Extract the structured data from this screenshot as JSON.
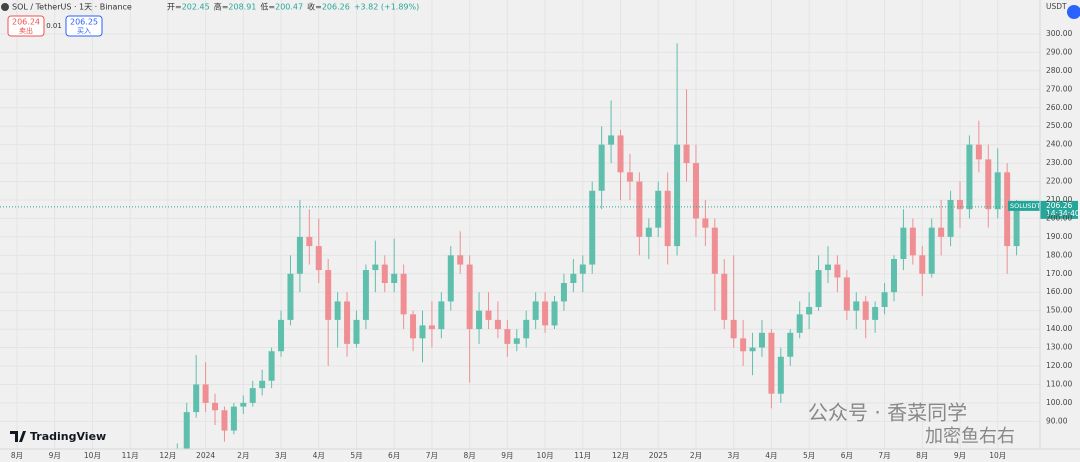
{
  "chart_data": {
    "type": "candlestick",
    "symbol": "SOL / TetherUS · 1天 · Binance",
    "ohlc_header": [
      {
        "label": "开",
        "value": "202.45"
      },
      {
        "label": "高",
        "value": "208.91"
      },
      {
        "label": "低",
        "value": "200.47"
      },
      {
        "label": "收",
        "value": "206.26"
      },
      {
        "label": "",
        "value": "+3.82 (+1.89%)"
      }
    ],
    "sell": {
      "price": "206.24",
      "label": "卖出"
    },
    "spread": "0.01",
    "buy": {
      "price": "206.25",
      "label": "买入"
    },
    "currency": "USDT",
    "last": {
      "name": "SOLUSDT",
      "value": 206.26,
      "time": "14:34:40"
    },
    "brand": "TradingView",
    "watermark": [
      "公众号 · 香菜同学",
      "加密鱼右右"
    ],
    "up_color": "#5fbfad",
    "down_color": "#ef8f93",
    "ylim": [
      75,
      313
    ],
    "yticks": [
      {
        "value": 90,
        "label": "90.00"
      },
      {
        "value": 100,
        "label": "100.00"
      },
      {
        "value": 110,
        "label": "110.00"
      },
      {
        "value": 120,
        "label": "120.00"
      },
      {
        "value": 130,
        "label": "130.00"
      },
      {
        "value": 140,
        "label": "140.00"
      },
      {
        "value": 150,
        "label": "150.00"
      },
      {
        "value": 160,
        "label": "160.00"
      },
      {
        "value": 170,
        "label": "170.00"
      },
      {
        "value": 180,
        "label": "180.00"
      },
      {
        "value": 190,
        "label": "190.00"
      },
      {
        "value": 200,
        "label": "200.00"
      },
      {
        "value": 210,
        "label": "210.00"
      },
      {
        "value": 220,
        "label": "220.00"
      },
      {
        "value": 230,
        "label": "230.00"
      },
      {
        "value": 240,
        "label": "240.00"
      },
      {
        "value": 250,
        "label": "250.00"
      },
      {
        "value": 260,
        "label": "260.00"
      },
      {
        "value": 270,
        "label": "270.00"
      },
      {
        "value": 280,
        "label": "280.00"
      },
      {
        "value": 290,
        "label": "290.00"
      },
      {
        "value": 300,
        "label": "300.00"
      }
    ],
    "xlim": [
      0,
      109.5
    ],
    "xticks": [
      {
        "value": 0,
        "label": "8月"
      },
      {
        "value": 4,
        "label": "9月"
      },
      {
        "value": 8,
        "label": "10月"
      },
      {
        "value": 12,
        "label": "11月"
      },
      {
        "value": 16,
        "label": "12月"
      },
      {
        "value": 20,
        "label": "2024"
      },
      {
        "value": 24,
        "label": "2月"
      },
      {
        "value": 28,
        "label": "3月"
      },
      {
        "value": 32,
        "label": "4月"
      },
      {
        "value": 36,
        "label": "5月"
      },
      {
        "value": 40,
        "label": "6月"
      },
      {
        "value": 44,
        "label": "7月"
      },
      {
        "value": 48,
        "label": "8月"
      },
      {
        "value": 52,
        "label": "9月"
      },
      {
        "value": 56,
        "label": "10月"
      },
      {
        "value": 60,
        "label": "11月"
      },
      {
        "value": 64,
        "label": "12月"
      },
      {
        "value": 68,
        "label": "2025"
      },
      {
        "value": 72,
        "label": "2月"
      },
      {
        "value": 76,
        "label": "3月"
      },
      {
        "value": 80,
        "label": "4月"
      },
      {
        "value": 84,
        "label": "5月"
      },
      {
        "value": 88,
        "label": "6月"
      },
      {
        "value": 92,
        "label": "7月"
      },
      {
        "value": 96,
        "label": "8月"
      },
      {
        "value": 100,
        "label": "9月"
      },
      {
        "value": 104,
        "label": "10月"
      }
    ],
    "grid": true,
    "start_index": 17,
    "candles": [
      {
        "open": 62,
        "high": 78,
        "low": 60,
        "close": 75
      },
      {
        "open": 75,
        "high": 100,
        "low": 72,
        "close": 95
      },
      {
        "open": 95,
        "high": 126,
        "low": 92,
        "close": 110
      },
      {
        "open": 110,
        "high": 122,
        "low": 95,
        "close": 100
      },
      {
        "open": 100,
        "high": 105,
        "low": 88,
        "close": 96
      },
      {
        "open": 96,
        "high": 98,
        "low": 79,
        "close": 85
      },
      {
        "open": 85,
        "high": 100,
        "low": 83,
        "close": 98
      },
      {
        "open": 98,
        "high": 104,
        "low": 94,
        "close": 100
      },
      {
        "open": 100,
        "high": 112,
        "low": 98,
        "close": 108
      },
      {
        "open": 108,
        "high": 118,
        "low": 104,
        "close": 112
      },
      {
        "open": 112,
        "high": 130,
        "low": 108,
        "close": 128
      },
      {
        "open": 128,
        "high": 150,
        "low": 125,
        "close": 145
      },
      {
        "open": 145,
        "high": 180,
        "low": 142,
        "close": 170
      },
      {
        "open": 170,
        "high": 210,
        "low": 160,
        "close": 190
      },
      {
        "open": 190,
        "high": 205,
        "low": 175,
        "close": 185
      },
      {
        "open": 185,
        "high": 200,
        "low": 165,
        "close": 172
      },
      {
        "open": 172,
        "high": 178,
        "low": 120,
        "close": 145
      },
      {
        "open": 145,
        "high": 160,
        "low": 130,
        "close": 155
      },
      {
        "open": 155,
        "high": 160,
        "low": 125,
        "close": 132
      },
      {
        "open": 132,
        "high": 150,
        "low": 130,
        "close": 145
      },
      {
        "open": 145,
        "high": 175,
        "low": 140,
        "close": 172
      },
      {
        "open": 172,
        "high": 188,
        "low": 160,
        "close": 175
      },
      {
        "open": 175,
        "high": 180,
        "low": 160,
        "close": 165
      },
      {
        "open": 165,
        "high": 189,
        "low": 160,
        "close": 170
      },
      {
        "open": 170,
        "high": 175,
        "low": 140,
        "close": 148
      },
      {
        "open": 148,
        "high": 150,
        "low": 128,
        "close": 135
      },
      {
        "open": 135,
        "high": 150,
        "low": 122,
        "close": 142
      },
      {
        "open": 142,
        "high": 155,
        "low": 130,
        "close": 140
      },
      {
        "open": 140,
        "high": 160,
        "low": 135,
        "close": 155
      },
      {
        "open": 155,
        "high": 185,
        "low": 150,
        "close": 180
      },
      {
        "open": 180,
        "high": 193,
        "low": 170,
        "close": 175
      },
      {
        "open": 175,
        "high": 180,
        "low": 111,
        "close": 140
      },
      {
        "open": 140,
        "high": 160,
        "low": 132,
        "close": 150
      },
      {
        "open": 150,
        "high": 160,
        "low": 140,
        "close": 145
      },
      {
        "open": 145,
        "high": 155,
        "low": 135,
        "close": 140
      },
      {
        "open": 140,
        "high": 145,
        "low": 125,
        "close": 132
      },
      {
        "open": 132,
        "high": 140,
        "low": 128,
        "close": 135
      },
      {
        "open": 135,
        "high": 150,
        "low": 130,
        "close": 145
      },
      {
        "open": 145,
        "high": 160,
        "low": 140,
        "close": 155
      },
      {
        "open": 155,
        "high": 160,
        "low": 138,
        "close": 142
      },
      {
        "open": 142,
        "high": 158,
        "low": 140,
        "close": 155
      },
      {
        "open": 155,
        "high": 170,
        "low": 150,
        "close": 165
      },
      {
        "open": 165,
        "high": 178,
        "low": 160,
        "close": 170
      },
      {
        "open": 170,
        "high": 180,
        "low": 160,
        "close": 175
      },
      {
        "open": 175,
        "high": 220,
        "low": 170,
        "close": 215
      },
      {
        "open": 215,
        "high": 250,
        "low": 205,
        "close": 240
      },
      {
        "open": 240,
        "high": 264,
        "low": 230,
        "close": 245
      },
      {
        "open": 245,
        "high": 248,
        "low": 210,
        "close": 225
      },
      {
        "open": 225,
        "high": 235,
        "low": 210,
        "close": 220
      },
      {
        "open": 220,
        "high": 225,
        "low": 180,
        "close": 190
      },
      {
        "open": 190,
        "high": 200,
        "low": 178,
        "close": 195
      },
      {
        "open": 195,
        "high": 220,
        "low": 190,
        "close": 215
      },
      {
        "open": 215,
        "high": 225,
        "low": 175,
        "close": 185
      },
      {
        "open": 185,
        "high": 295,
        "low": 180,
        "close": 240
      },
      {
        "open": 240,
        "high": 270,
        "low": 220,
        "close": 230
      },
      {
        "open": 230,
        "high": 240,
        "low": 190,
        "close": 200
      },
      {
        "open": 200,
        "high": 210,
        "low": 185,
        "close": 195
      },
      {
        "open": 195,
        "high": 200,
        "low": 150,
        "close": 170
      },
      {
        "open": 170,
        "high": 178,
        "low": 140,
        "close": 145
      },
      {
        "open": 145,
        "high": 180,
        "low": 130,
        "close": 135
      },
      {
        "open": 135,
        "high": 145,
        "low": 120,
        "close": 128
      },
      {
        "open": 128,
        "high": 138,
        "low": 115,
        "close": 130
      },
      {
        "open": 130,
        "high": 145,
        "low": 125,
        "close": 138
      },
      {
        "open": 138,
        "high": 140,
        "low": 97,
        "close": 105
      },
      {
        "open": 105,
        "high": 130,
        "low": 100,
        "close": 125
      },
      {
        "open": 125,
        "high": 140,
        "low": 120,
        "close": 138
      },
      {
        "open": 138,
        "high": 155,
        "low": 135,
        "close": 148
      },
      {
        "open": 148,
        "high": 160,
        "low": 140,
        "close": 152
      },
      {
        "open": 152,
        "high": 180,
        "low": 150,
        "close": 172
      },
      {
        "open": 172,
        "high": 185,
        "low": 165,
        "close": 175
      },
      {
        "open": 175,
        "high": 180,
        "low": 160,
        "close": 168
      },
      {
        "open": 168,
        "high": 172,
        "low": 145,
        "close": 150
      },
      {
        "open": 150,
        "high": 160,
        "low": 140,
        "close": 155
      },
      {
        "open": 155,
        "high": 158,
        "low": 135,
        "close": 145
      },
      {
        "open": 145,
        "high": 155,
        "low": 138,
        "close": 152
      },
      {
        "open": 152,
        "high": 165,
        "low": 148,
        "close": 160
      },
      {
        "open": 160,
        "high": 180,
        "low": 155,
        "close": 178
      },
      {
        "open": 178,
        "high": 205,
        "low": 172,
        "close": 195
      },
      {
        "open": 195,
        "high": 200,
        "low": 175,
        "close": 180
      },
      {
        "open": 180,
        "high": 185,
        "low": 158,
        "close": 170
      },
      {
        "open": 170,
        "high": 200,
        "low": 168,
        "close": 195
      },
      {
        "open": 195,
        "high": 210,
        "low": 180,
        "close": 190
      },
      {
        "open": 190,
        "high": 215,
        "low": 185,
        "close": 210
      },
      {
        "open": 210,
        "high": 220,
        "low": 195,
        "close": 205
      },
      {
        "open": 205,
        "high": 245,
        "low": 200,
        "close": 240
      },
      {
        "open": 240,
        "high": 253,
        "low": 225,
        "close": 232
      },
      {
        "open": 232,
        "high": 240,
        "low": 195,
        "close": 205
      },
      {
        "open": 205,
        "high": 238,
        "low": 200,
        "close": 225
      },
      {
        "open": 225,
        "high": 230,
        "low": 170,
        "close": 185
      },
      {
        "open": 185,
        "high": 210,
        "low": 180,
        "close": 206.26
      }
    ]
  }
}
